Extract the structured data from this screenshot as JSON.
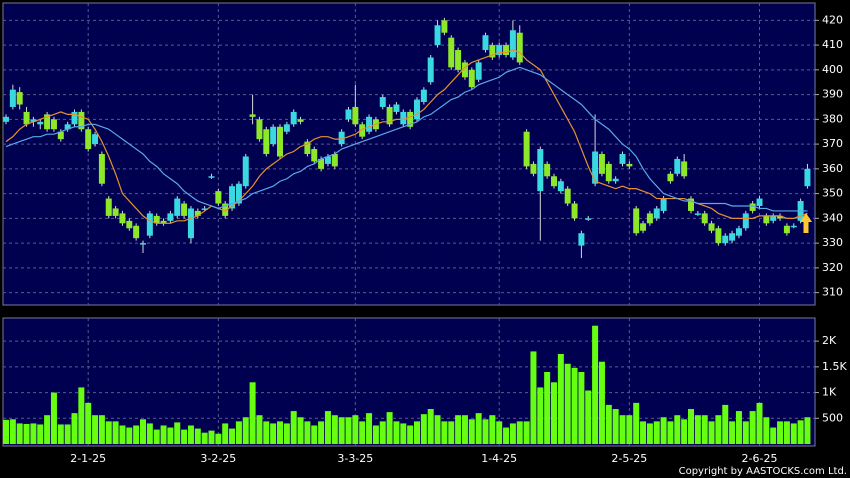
{
  "chart_data": {
    "type": "candlestick",
    "categories": [
      null,
      null,
      null,
      null,
      null,
      null,
      null,
      null,
      null,
      null,
      null,
      null,
      "2-1-25",
      null,
      null,
      null,
      null,
      null,
      null,
      null,
      null,
      null,
      null,
      null,
      null,
      null,
      null,
      null,
      null,
      null,
      null,
      "3-2-25",
      null,
      null,
      null,
      null,
      null,
      null,
      null,
      null,
      null,
      null,
      null,
      null,
      null,
      null,
      null,
      null,
      null,
      null,
      null,
      "3-3-25",
      null,
      null,
      null,
      null,
      null,
      null,
      null,
      null,
      null,
      null,
      null,
      null,
      null,
      null,
      null,
      null,
      null,
      null,
      null,
      null,
      "1-4-25",
      null,
      null,
      null,
      null,
      null,
      null,
      null,
      null,
      null,
      null,
      null,
      null,
      null,
      null,
      null,
      null,
      null,
      null,
      "2-5-25",
      null,
      null,
      null,
      null,
      null,
      null,
      null,
      null,
      null,
      null,
      null,
      null,
      null,
      null,
      null,
      null,
      null,
      null,
      "2-6-25",
      null,
      null,
      null,
      null,
      null,
      null
    ],
    "ohlc": [
      [
        379,
        382,
        378,
        381
      ],
      [
        385,
        394,
        384,
        392
      ],
      [
        391,
        393,
        384,
        386
      ],
      [
        383,
        385,
        377,
        378
      ],
      [
        379,
        381,
        377,
        380
      ],
      [
        378,
        380,
        376,
        379
      ],
      [
        382,
        383,
        375,
        376
      ],
      [
        380,
        381,
        375,
        376
      ],
      [
        375,
        376,
        371,
        372
      ],
      [
        376,
        379,
        375,
        378
      ],
      [
        378,
        384,
        377,
        383
      ],
      [
        383,
        384,
        375,
        376
      ],
      [
        376,
        377,
        367,
        368
      ],
      [
        370,
        375,
        369,
        374
      ],
      [
        366,
        367,
        353,
        354
      ],
      [
        348,
        349,
        340,
        341
      ],
      [
        344,
        345,
        340,
        341
      ],
      [
        342,
        343,
        337,
        338
      ],
      [
        339,
        340,
        335,
        336
      ],
      [
        337,
        338,
        331,
        332
      ],
      [
        330,
        331,
        326,
        330
      ],
      [
        333,
        343,
        332,
        342
      ],
      [
        341,
        342,
        337,
        338
      ],
      [
        339,
        340,
        337,
        338
      ],
      [
        339,
        343,
        338,
        342
      ],
      [
        341,
        349,
        340,
        348
      ],
      [
        346,
        347,
        340,
        341
      ],
      [
        332,
        345,
        330,
        344
      ],
      [
        343,
        344,
        340,
        341
      ],
      [
        344,
        345,
        343,
        344
      ],
      [
        357,
        358,
        356,
        357
      ],
      [
        351,
        352,
        345,
        346
      ],
      [
        346,
        347,
        340,
        341
      ],
      [
        344,
        354,
        343,
        353
      ],
      [
        346,
        355,
        345,
        354
      ],
      [
        353,
        366,
        352,
        365
      ],
      [
        382,
        390,
        378,
        381
      ],
      [
        380,
        381,
        371,
        372
      ],
      [
        376,
        377,
        365,
        366
      ],
      [
        370,
        378,
        369,
        377
      ],
      [
        377,
        378,
        364,
        365
      ],
      [
        375,
        379,
        374,
        378
      ],
      [
        378,
        384,
        377,
        383
      ],
      [
        380,
        381,
        378,
        379
      ],
      [
        371,
        372,
        365,
        366
      ],
      [
        368,
        369,
        362,
        363
      ],
      [
        364,
        365,
        359,
        360
      ],
      [
        362,
        366,
        361,
        365
      ],
      [
        366,
        367,
        360,
        361
      ],
      [
        370,
        376,
        369,
        375
      ],
      [
        380,
        385,
        379,
        384
      ],
      [
        385,
        394,
        377,
        378
      ],
      [
        378,
        379,
        372,
        373
      ],
      [
        375,
        382,
        374,
        381
      ],
      [
        380,
        381,
        375,
        376
      ],
      [
        385,
        390,
        384,
        389
      ],
      [
        385,
        386,
        377,
        378
      ],
      [
        383,
        387,
        382,
        386
      ],
      [
        378,
        384,
        377,
        383
      ],
      [
        383,
        384,
        376,
        377
      ],
      [
        380,
        389,
        379,
        388
      ],
      [
        387,
        393,
        386,
        392
      ],
      [
        395,
        406,
        394,
        405
      ],
      [
        410,
        420,
        409,
        418
      ],
      [
        420,
        421,
        414,
        415
      ],
      [
        413,
        414,
        400,
        401
      ],
      [
        408,
        409,
        399,
        400
      ],
      [
        403,
        404,
        396,
        397
      ],
      [
        400,
        401,
        392,
        393
      ],
      [
        396,
        404,
        395,
        403
      ],
      [
        408,
        415,
        407,
        414
      ],
      [
        410,
        411,
        404,
        405
      ],
      [
        406,
        411,
        405,
        410
      ],
      [
        410,
        411,
        405,
        406
      ],
      [
        405,
        420,
        404,
        416
      ],
      [
        415,
        418,
        402,
        403
      ],
      [
        375,
        376,
        360,
        361
      ],
      [
        362,
        363,
        357,
        358
      ],
      [
        351,
        369,
        331,
        368
      ],
      [
        362,
        363,
        356,
        357
      ],
      [
        357,
        358,
        352,
        353
      ],
      [
        351,
        356,
        350,
        355
      ],
      [
        352,
        353,
        345,
        346
      ],
      [
        346,
        347,
        339,
        340
      ],
      [
        329,
        335,
        324,
        334
      ],
      [
        340,
        341,
        339,
        340
      ],
      [
        354,
        382,
        353,
        367
      ],
      [
        366,
        367,
        357,
        358
      ],
      [
        362,
        363,
        354,
        355
      ],
      [
        355,
        357,
        354,
        356
      ],
      [
        362,
        367,
        361,
        366
      ],
      [
        362,
        363,
        360,
        361
      ],
      [
        344,
        345,
        333,
        334
      ],
      [
        338,
        339,
        334,
        335
      ],
      [
        342,
        343,
        337,
        338
      ],
      [
        340,
        345,
        339,
        344
      ],
      [
        343,
        349,
        342,
        348
      ],
      [
        358,
        359,
        354,
        355
      ],
      [
        358,
        365,
        357,
        364
      ],
      [
        363,
        366,
        356,
        357
      ],
      [
        348,
        349,
        342,
        343
      ],
      [
        342,
        343,
        341,
        342
      ],
      [
        342,
        343,
        337,
        338
      ],
      [
        338,
        339,
        334,
        335
      ],
      [
        336,
        337,
        329,
        330
      ],
      [
        330,
        334,
        329,
        333
      ],
      [
        331,
        335,
        330,
        334
      ],
      [
        333,
        337,
        332,
        336
      ],
      [
        336,
        343,
        335,
        342
      ],
      [
        346,
        347,
        342,
        343
      ],
      [
        345,
        349,
        344,
        348
      ],
      [
        341,
        342,
        337,
        338
      ],
      [
        339,
        342,
        338,
        341
      ],
      [
        341,
        342,
        339,
        340
      ],
      [
        337,
        338,
        333,
        334
      ],
      [
        337,
        338,
        336,
        337
      ],
      [
        339,
        348,
        338,
        347
      ],
      [
        353,
        362,
        352,
        360
      ]
    ],
    "up_color": "#3ad8e0",
    "down_color": "#8ee82a",
    "ylim": [
      305,
      427
    ],
    "yticks": [
      310,
      320,
      330,
      340,
      350,
      360,
      370,
      380,
      390,
      400,
      410,
      420
    ],
    "grid": true,
    "ma": [
      {
        "color": "#e89030",
        "values": [
          371,
          373,
          376,
          378,
          379,
          380,
          381,
          382,
          383,
          382,
          382,
          381,
          380,
          376,
          371,
          365,
          358,
          350,
          347,
          344,
          341,
          339,
          338,
          338,
          338,
          339,
          339,
          340,
          341,
          343,
          345,
          344,
          343,
          345,
          347,
          350,
          353,
          357,
          360,
          362,
          364,
          366,
          367,
          369,
          370,
          372,
          373,
          373,
          372,
          372,
          373,
          374,
          376,
          377,
          378,
          379,
          379,
          380,
          380,
          381,
          382,
          384,
          387,
          390,
          392,
          395,
          398,
          401,
          403,
          404,
          405,
          406,
          407,
          407,
          408,
          407,
          404,
          402,
          400,
          395,
          390,
          385,
          380,
          375,
          368,
          361,
          355,
          354,
          353,
          352,
          353,
          352,
          352,
          351,
          350,
          348,
          348,
          348,
          348,
          348,
          347,
          346,
          345,
          344,
          342,
          341,
          340,
          340,
          340,
          340,
          341,
          341,
          341,
          341,
          340,
          340,
          341,
          342
        ]
      },
      {
        "color": "#5aa8e8",
        "values": [
          369,
          370,
          371,
          372,
          373,
          373,
          374,
          374,
          375,
          376,
          377,
          377,
          378,
          378,
          377,
          376,
          374,
          372,
          370,
          368,
          366,
          363,
          361,
          358,
          356,
          354,
          351,
          349,
          347,
          346,
          345,
          344,
          345,
          346,
          347,
          348,
          350,
          351,
          352,
          353,
          355,
          356,
          358,
          359,
          361,
          362,
          364,
          365,
          366,
          368,
          369,
          370,
          371,
          372,
          373,
          374,
          375,
          376,
          377,
          378,
          379,
          381,
          382,
          384,
          386,
          388,
          389,
          391,
          392,
          394,
          395,
          396,
          397,
          399,
          400,
          401,
          400,
          399,
          398,
          396,
          394,
          392,
          390,
          388,
          386,
          383,
          380,
          378,
          376,
          373,
          370,
          368,
          365,
          360,
          356,
          353,
          350,
          349,
          348,
          347,
          347,
          346,
          346,
          346,
          346,
          346,
          345,
          345,
          345,
          345,
          344,
          344,
          343,
          343,
          343,
          343,
          343,
          343
        ]
      }
    ],
    "volume": {
      "type": "bar",
      "color": "#66ff11",
      "values": [
        470,
        480,
        400,
        390,
        400,
        380,
        560,
        1000,
        380,
        380,
        600,
        1100,
        800,
        560,
        560,
        440,
        440,
        360,
        320,
        360,
        480,
        400,
        280,
        360,
        320,
        420,
        280,
        360,
        300,
        220,
        260,
        200,
        400,
        300,
        440,
        520,
        1200,
        560,
        440,
        400,
        440,
        400,
        640,
        520,
        440,
        360,
        440,
        640,
        560,
        520,
        520,
        560,
        440,
        600,
        360,
        440,
        620,
        440,
        400,
        360,
        440,
        580,
        680,
        560,
        440,
        440,
        560,
        560,
        480,
        600,
        480,
        560,
        440,
        320,
        400,
        440,
        440,
        1800,
        1100,
        1400,
        1200,
        1750,
        1560,
        1480,
        1400,
        1040,
        2300,
        1600,
        760,
        680,
        560,
        560,
        800,
        440,
        400,
        440,
        520,
        440,
        560,
        480,
        680,
        560,
        560,
        440,
        560,
        760,
        440,
        640,
        440,
        640,
        800,
        520,
        320,
        440,
        440,
        400,
        460,
        520
      ],
      "ylim": [
        0,
        2450
      ],
      "yticks": [
        {
          "value": 500,
          "label": "500"
        },
        {
          "value": 1000,
          "label": "1K"
        },
        {
          "value": 1500,
          "label": "1.5K"
        },
        {
          "value": 2000,
          "label": "2K"
        }
      ]
    },
    "source": "Copyright by AASTOCKS.com Ltd."
  }
}
